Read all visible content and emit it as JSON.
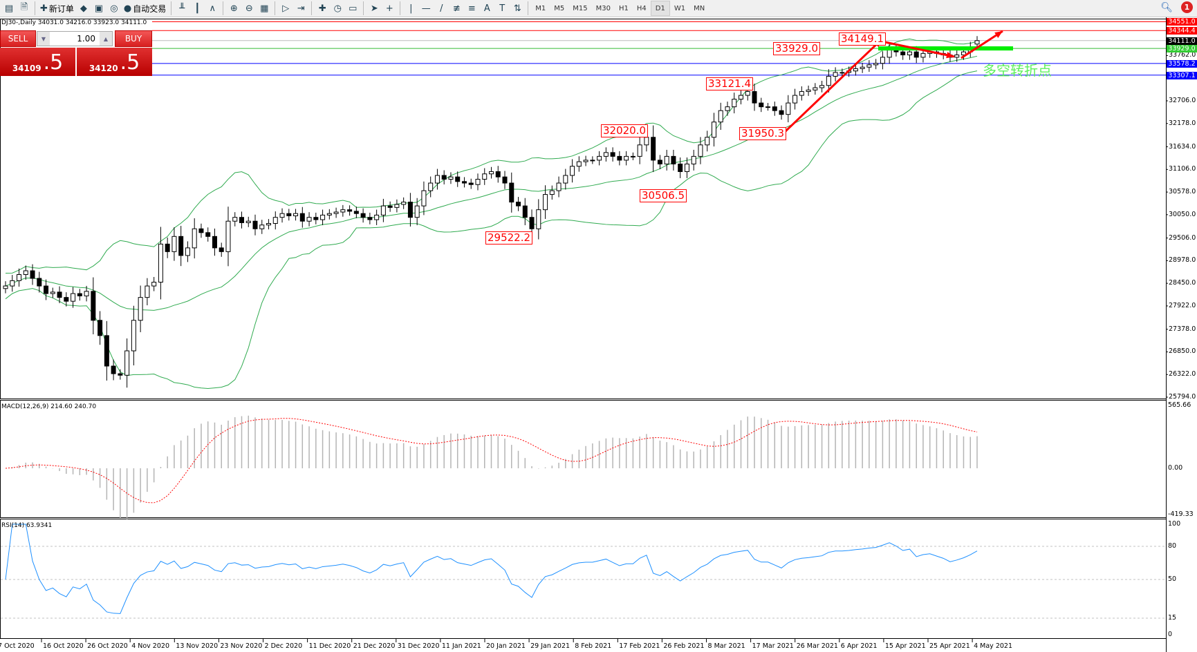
{
  "toolbar": {
    "new_order": "新订单",
    "auto_trade": "自动交易",
    "icons": [
      "new-chart-icon",
      "profiles-icon",
      "new-order-icon",
      "metaeditor-icon",
      "navigator-icon",
      "signals-icon",
      "auto-trade-icon",
      "bar-chart-icon",
      "candlestick-icon",
      "line-chart-icon",
      "zoom-in-icon",
      "zoom-out-icon",
      "tile-windows-icon",
      "chart-shift-icon",
      "auto-scroll-icon",
      "indicators-icon",
      "periods-icon",
      "templates-icon",
      "cursor-icon",
      "crosshair-icon",
      "vertical-line-icon",
      "horizontal-line-icon",
      "trendline-icon",
      "fibonacci-icon",
      "fibo-fan-icon",
      "text-icon",
      "text-label-icon",
      "arrows-icon"
    ],
    "timeframes": [
      "M1",
      "M5",
      "M15",
      "M30",
      "H1",
      "H4",
      "D1",
      "W1",
      "MN"
    ],
    "active_timeframe": "D1",
    "notification_count": "1"
  },
  "symbol_line": "DJ30-,Daily  34031.0 34216.0 33923.0 34111.0",
  "trade_panel": {
    "sell_label": "SELL",
    "buy_label": "BUY",
    "lot": "1.00",
    "sell_main": "34109",
    "sell_frac": ".5",
    "buy_main": "34120",
    "buy_frac": ".5"
  },
  "annotations": [
    "34149.1",
    "33929.0",
    "33121.4",
    "32020.0",
    "31950.3",
    "30506.5",
    "29522.2"
  ],
  "cn_label": "多空转折点",
  "colors": {
    "bollinger": "#2eaa4e",
    "macd_signal": "#ff0000",
    "macd_hist": "#b4b4b4",
    "rsi": "#1e90ff",
    "arrow": "#ff0000",
    "support_bar": "#00ee00"
  },
  "chart_data": [
    {
      "type": "candlestick",
      "symbol": "DJ30-",
      "period": "Daily",
      "ylim": [
        25794.0,
        34551.0
      ],
      "y_ticks": [
        "32706.0",
        "32178.0",
        "31634.0",
        "31106.0",
        "30578.0",
        "30050.0",
        "29506.0",
        "28978.0",
        "28450.0",
        "27922.0",
        "27378.0",
        "26850.0",
        "26322.0",
        "25794.0",
        "33762.0"
      ],
      "x_ticks": [
        "7 Oct 2020",
        "16 Oct 2020",
        "26 Oct 2020",
        "4 Nov 2020",
        "13 Nov 2020",
        "23 Nov 2020",
        "2 Dec 2020",
        "11 Dec 2020",
        "21 Dec 2020",
        "31 Dec 2020",
        "11 Jan 2021",
        "20 Jan 2021",
        "29 Jan 2021",
        "8 Feb 2021",
        "17 Feb 2021",
        "26 Feb 2021",
        "8 Mar 2021",
        "17 Mar 2021",
        "26 Mar 2021",
        "6 Apr 2021",
        "15 Apr 2021",
        "25 Apr 2021",
        "4 May 2021"
      ],
      "closes": [
        28387,
        28511,
        28654,
        28742,
        28565,
        28387,
        28210,
        28245,
        28120,
        28031,
        28210,
        28155,
        28262,
        27586,
        27230,
        26519,
        26341,
        26305,
        26874,
        27586,
        28120,
        28387,
        28476,
        29365,
        29188,
        29543,
        29098,
        29276,
        29721,
        29632,
        29543,
        29276,
        29188,
        29899,
        29988,
        29863,
        29899,
        29721,
        29810,
        29846,
        29988,
        30077,
        30023,
        30077,
        29899,
        29988,
        29934,
        30041,
        30077,
        30112,
        30166,
        30130,
        30077,
        29988,
        29934,
        30041,
        30255,
        30219,
        30290,
        30344,
        29988,
        30255,
        30610,
        30788,
        30966,
        30877,
        30931,
        30824,
        30788,
        30753,
        30877,
        31002,
        31055,
        30931,
        30788,
        30344,
        30255,
        29988,
        29721,
        30166,
        30522,
        30610,
        30788,
        30966,
        31180,
        31286,
        31322,
        31322,
        31411,
        31500,
        31411,
        31322,
        31411,
        31411,
        31678,
        31856,
        31322,
        31233,
        31411,
        31233,
        31055,
        31233,
        31411,
        31678,
        31856,
        32212,
        32478,
        32567,
        32745,
        32834,
        32923,
        32656,
        32567,
        32567,
        32478,
        32389,
        32656,
        32834,
        32923,
        32959,
        33012,
        33065,
        33279,
        33368,
        33368,
        33403,
        33457,
        33492,
        33546,
        33581,
        33723,
        33901,
        33848,
        33777,
        33848,
        33723,
        33812,
        33848,
        33812,
        33777,
        33723,
        33777,
        33848,
        33955,
        34111
      ],
      "last_ohlc": {
        "open": 34031.0,
        "high": 34216.0,
        "low": 33923.0,
        "close": 34111.0
      },
      "indicator": "Bollinger Bands",
      "levels": [
        {
          "value": "34551.0",
          "color": "#ff0000"
        },
        {
          "value": "34344.4",
          "color": "#ff0000"
        },
        {
          "value": "34111.0",
          "color": "#000000"
        },
        {
          "value": "33929.0",
          "color": "#33bb33"
        },
        {
          "value": "33578.2",
          "color": "#0000ff"
        },
        {
          "value": "33307.1",
          "color": "#0000ff"
        }
      ]
    },
    {
      "type": "bar+line",
      "title": "MACD(12,26,9) 214.60 240.70",
      "ylim": [
        -419.33,
        565.66
      ],
      "y_ticks": [
        "565.66",
        "0.00",
        "-419.33"
      ]
    },
    {
      "type": "line",
      "title": "RSI(14) 63.9341",
      "ylim": [
        0,
        100
      ],
      "y_ticks": [
        "100",
        "80",
        "50",
        "15",
        "0"
      ],
      "levels": [
        80,
        50,
        15
      ]
    }
  ]
}
